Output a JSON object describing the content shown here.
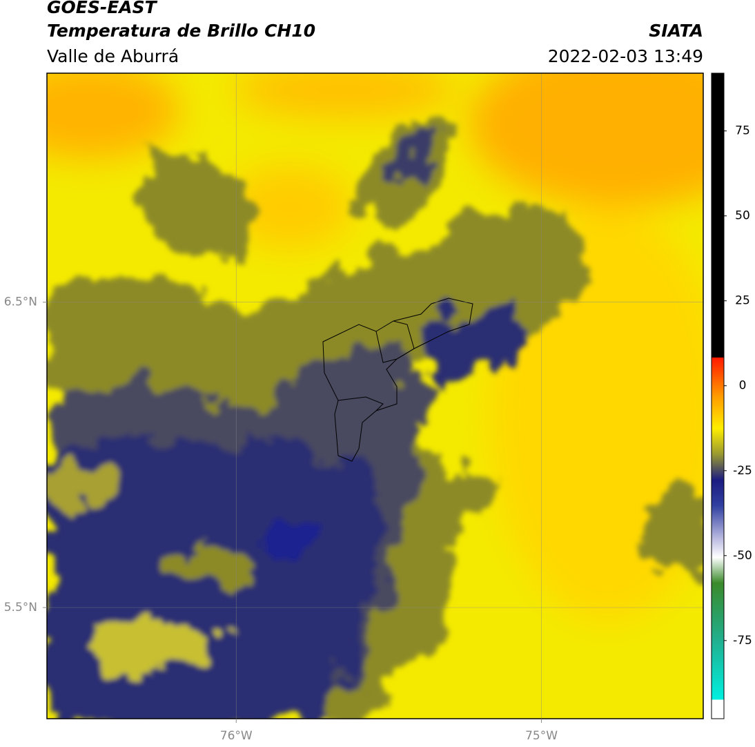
{
  "header": {
    "title": "GOES-EAST",
    "subtitle": "Temperatura de Brillo CH10",
    "region": "Valle de Aburrá",
    "source": "SIATA",
    "datetime": "2022-02-03 13:49"
  },
  "map": {
    "xlim": [
      -76.62,
      -74.47
    ],
    "ylim": [
      5.136,
      7.25
    ],
    "xticks": [
      {
        "value": -76,
        "label": "76°W"
      },
      {
        "value": -75,
        "label": "75°W"
      }
    ],
    "yticks": [
      {
        "value": 6.5,
        "label": "6.5°N"
      },
      {
        "value": 5.5,
        "label": "5.5°N"
      }
    ],
    "grid": true
  },
  "colorbar": {
    "lim": [
      -98,
      92
    ],
    "ticks": [
      75,
      50,
      25,
      0,
      -25,
      -50,
      -75
    ]
  }
}
